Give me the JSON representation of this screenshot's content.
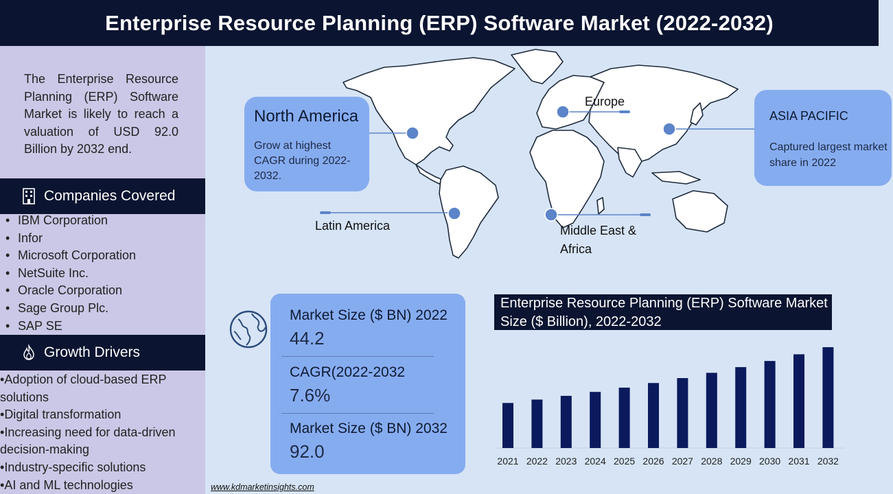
{
  "title": "Enterprise Resource Planning (ERP) Software Market (2022-2032)",
  "sidebar": {
    "intro": "The Enterprise Resource Planning (ERP) Software Market is likely to reach a valuation of USD 92.0 Billion by 2032 end.",
    "companies_heading": "Companies Covered",
    "companies_icon": "building-icon",
    "companies": [
      "IBM Corporation",
      "Infor",
      "Microsoft Corporation",
      "NetSuite Inc.",
      "Oracle Corporation",
      "Sage Group Plc.",
      "SAP SE"
    ],
    "drivers_heading": "Growth Drivers",
    "drivers_icon": "flame-icon",
    "drivers": [
      "Adoption of cloud-based ERP solutions",
      "Digital transformation",
      "Increasing need for data-driven decision-making",
      "Industry-specific solutions",
      "AI and ML technologies"
    ]
  },
  "map": {
    "north_america": {
      "title": "North America",
      "text": "Grow at highest CAGR during 2022-2032."
    },
    "asia_pacific": {
      "title": "ASIA PACIFIC",
      "text": "Captured largest market share in 2022"
    },
    "europe": "Europe",
    "latin_america": "Latin America",
    "middle_east_africa": "Middle East & Africa"
  },
  "stats": {
    "market_2022_label": "Market Size ($ BN) 2022",
    "market_2022_value": "44.2",
    "cagr_label": "CAGR(2022-2032",
    "cagr_value": "7.6%",
    "market_2032_label": "Market Size ($ BN) 2032",
    "market_2032_value": "92.0"
  },
  "chart_data": {
    "type": "bar",
    "title": "Enterprise Resource Planning (ERP) Software Market Size ($ Billion), 2022-2032",
    "categories": [
      "2021",
      "2022",
      "2023",
      "2024",
      "2025",
      "2026",
      "2027",
      "2028",
      "2029",
      "2030",
      "2031",
      "2032"
    ],
    "values": [
      41.1,
      44.2,
      47.6,
      51.2,
      55.1,
      59.3,
      63.8,
      68.6,
      73.8,
      79.4,
      85.5,
      92.0
    ],
    "bar_color": "#0a1a5c",
    "ylim": [
      0,
      92.0
    ],
    "grid": false
  },
  "colors": {
    "dark_navy": "#0b1430",
    "sidebar": "#cac8e6",
    "panel_blue": "#86acf0",
    "background": "#d6e4f5",
    "marker": "#5b84c9"
  },
  "footer": {
    "url": "www.kdmarketinsights.com"
  }
}
